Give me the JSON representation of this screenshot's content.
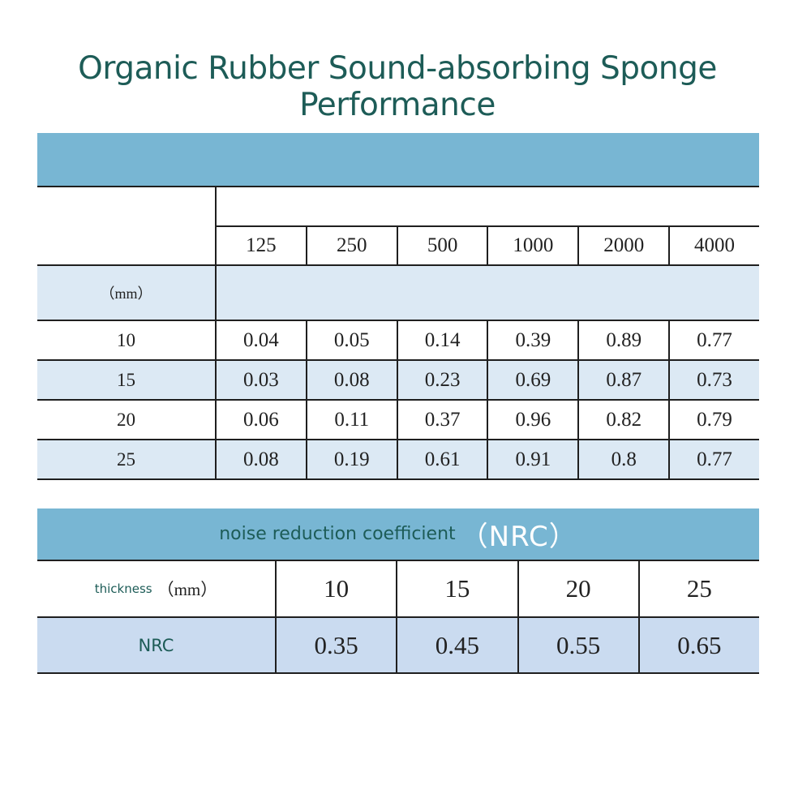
{
  "title": "Organic Rubber Sound-absorbing Sponge Performance",
  "absorption_table": {
    "frequencies": [
      "125",
      "250",
      "500",
      "1000",
      "2000",
      "4000"
    ],
    "unit_label": "（mm）",
    "rows": [
      {
        "thickness": "10",
        "values": [
          "0.04",
          "0.05",
          "0.14",
          "0.39",
          "0.89",
          "0.77"
        ]
      },
      {
        "thickness": "15",
        "values": [
          "0.03",
          "0.08",
          "0.23",
          "0.69",
          "0.87",
          "0.73"
        ]
      },
      {
        "thickness": "20",
        "values": [
          "0.06",
          "0.11",
          "0.37",
          "0.96",
          "0.82",
          "0.79"
        ]
      },
      {
        "thickness": "25",
        "values": [
          "0.08",
          "0.19",
          "0.61",
          "0.91",
          "0.8",
          "0.77"
        ]
      }
    ]
  },
  "nrc_table": {
    "banner_label": "noise reduction coefficient",
    "banner_abbr": "（NRC）",
    "thickness_label": "thickness",
    "thickness_unit": "（mm）",
    "thicknesses": [
      "10",
      "15",
      "20",
      "25"
    ],
    "nrc_label": "NRC",
    "nrc_values": [
      "0.35",
      "0.45",
      "0.55",
      "0.65"
    ]
  },
  "colors": {
    "banner": "#78b6d3",
    "alt_row": "#dce9f4",
    "nrc_row": "#cadbf0",
    "title_text": "#1d5c57"
  }
}
